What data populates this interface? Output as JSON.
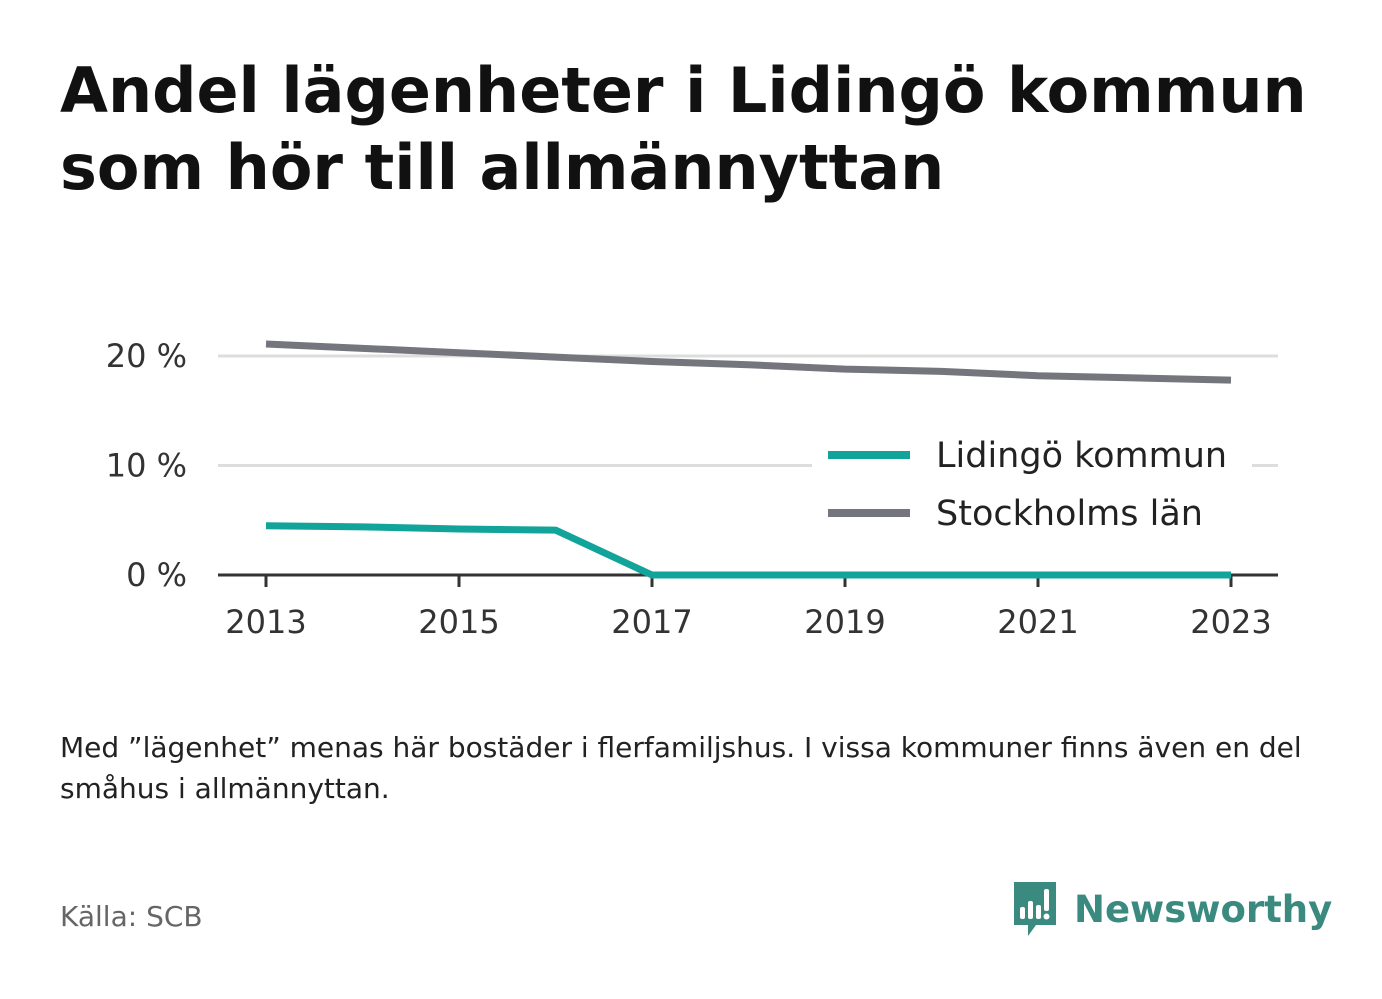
{
  "title": "Andel lägenheter i Lidingö kommun som hör till allmännyttan",
  "note": "Med ”lägenhet” menas här bostäder i flerfamiljshus. I vissa kommuner finns även en del småhus i allmännyttan.",
  "source": "Källa: SCB",
  "brand": {
    "name": "Newsworthy",
    "icon": "newsworthy-logo-icon",
    "color": "#3a8a80"
  },
  "chart_data": {
    "type": "line",
    "x": [
      2013,
      2014,
      2015,
      2016,
      2017,
      2018,
      2019,
      2020,
      2021,
      2022,
      2023
    ],
    "x_ticks": [
      2013,
      2015,
      2017,
      2019,
      2021,
      2023
    ],
    "x_tick_labels": [
      "2013",
      "2015",
      "2017",
      "2019",
      "2021",
      "2023"
    ],
    "y_ticks": [
      0,
      10,
      20
    ],
    "y_tick_labels": [
      "0 %",
      "10 %",
      "20 %"
    ],
    "ylim": [
      0,
      22
    ],
    "grid": true,
    "legend_placement": "center-right",
    "series": [
      {
        "name": "Lidingö kommun",
        "color": "#12a39a",
        "values": [
          4.5,
          4.4,
          4.2,
          4.1,
          0.0,
          0.0,
          0.0,
          0.0,
          0.0,
          0.0,
          0.0
        ]
      },
      {
        "name": "Stockholms län",
        "color": "#75757d",
        "values": [
          21.1,
          20.7,
          20.3,
          19.9,
          19.5,
          19.2,
          18.8,
          18.6,
          18.2,
          18.0,
          17.8
        ]
      }
    ]
  }
}
